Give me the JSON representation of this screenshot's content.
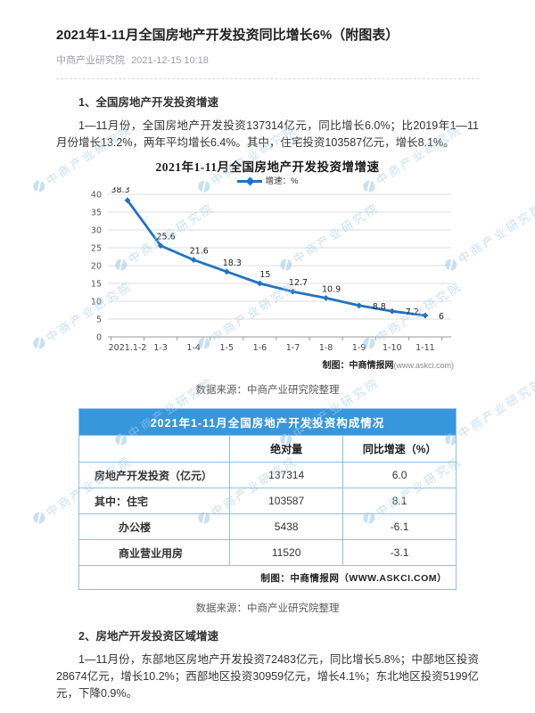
{
  "article": {
    "title": "2021年1-11月全国房地产开发投资同比增长6%（附图表）",
    "source": "中商产业研究院",
    "datetime": "2021-12-15 10:18",
    "section1": {
      "heading": "1、全国房地产开发投资增速",
      "paragraph": "1—11月份，全国房地产开发投资137314亿元，同比增长6.0%；比2019年1—11月份增长13.2%，两年平均增长6.4%。其中，住宅投资103587亿元，增长8.1%。"
    },
    "chart_source_note": "数据来源：中商产业研究院整理",
    "table_source_note": "数据来源：中商产业研究院整理",
    "section2": {
      "heading": "2、房地产开发投资区域增速",
      "paragraph": "1—11月份，东部地区房地产开发投资72483亿元，同比增长5.8%；中部地区投资28674亿元，增长10.2%；西部地区投资30959亿元，增长4.1%；东北地区投资5199亿元，下降0.9%。"
    }
  },
  "watermark": {
    "text": "中商产业研究院",
    "color": "#a3cdeb"
  },
  "chart_data": {
    "type": "line",
    "title": "2021年1-11月全国房地产开发投资增增速",
    "legend": "增速：%",
    "categories": [
      "2021.1-2",
      "1-3",
      "1-4",
      "1-5",
      "1-6",
      "1-7",
      "1-8",
      "1-9",
      "1-10",
      "1-11"
    ],
    "values": [
      38.3,
      25.6,
      21.6,
      18.3,
      15,
      12.7,
      10.9,
      8.8,
      7.2,
      6
    ],
    "xlabel": "",
    "ylabel": "",
    "ylim": [
      0,
      40
    ],
    "ytick_step": 5,
    "grid": true,
    "legend_position": "top-center",
    "line_color": "#2273c3",
    "credit": "制图：中商情报网",
    "credit_url": "(www.askci.com)"
  },
  "table": {
    "title": "2021年1-11月全国房地产开发投资构成情况",
    "headers": [
      "",
      "绝对量",
      "同比增速（%）"
    ],
    "rows": [
      [
        "房地产开发投资（亿元）",
        "137314",
        "6.0"
      ],
      [
        "其中：住宅",
        "103587",
        "8.1"
      ],
      [
        "办公楼",
        "5438",
        "-6.1"
      ],
      [
        "商业营业用房",
        "11520",
        "-3.1"
      ]
    ],
    "footer": "制图：中商情报网（WWW.ASKCI.COM）",
    "header_bg": "#3797dc",
    "border_color": "#8fc0e9"
  }
}
